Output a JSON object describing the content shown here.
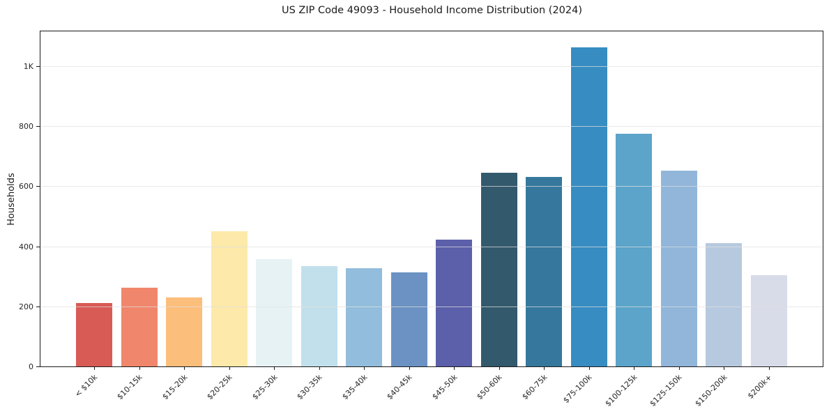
{
  "chart_data": {
    "type": "bar",
    "title": "US ZIP Code 49093 - Household Income Distribution (2024)",
    "xlabel": "",
    "ylabel": "Households",
    "ylim": [
      0,
      1116
    ],
    "grid": true,
    "legend": false,
    "categories": [
      "< $10k",
      "$10-15k",
      "$15-20k",
      "$20-25k",
      "$25-30k",
      "$30-35k",
      "$35-40k",
      "$40-45k",
      "$45-50k",
      "$50-60k",
      "$60-75k",
      "$75-100k",
      "$100-125k",
      "$125-150k",
      "$150-200k",
      "$200k+"
    ],
    "values": [
      210,
      262,
      230,
      450,
      357,
      334,
      327,
      314,
      422,
      644,
      630,
      1063,
      776,
      653,
      410,
      304
    ],
    "bar_colors": [
      "#d95b55",
      "#f0876c",
      "#fcbe7b",
      "#fde9a9",
      "#e7f2f5",
      "#c2e0ec",
      "#93bddc",
      "#6b92c3",
      "#5c5fa9",
      "#33596d",
      "#36789d",
      "#378cc1",
      "#5ca4ca",
      "#91b6d9",
      "#b6c9df",
      "#d8dbe8"
    ],
    "y_ticks": {
      "values": [
        0,
        200,
        400,
        600,
        800,
        1000
      ],
      "labels": [
        "0",
        "200",
        "400",
        "600",
        "800",
        "1K"
      ]
    },
    "colors": {
      "spine": "#1a1a1a",
      "grid": "#e7e7e7",
      "tick_text": "#262626",
      "background": "#ffffff"
    }
  }
}
